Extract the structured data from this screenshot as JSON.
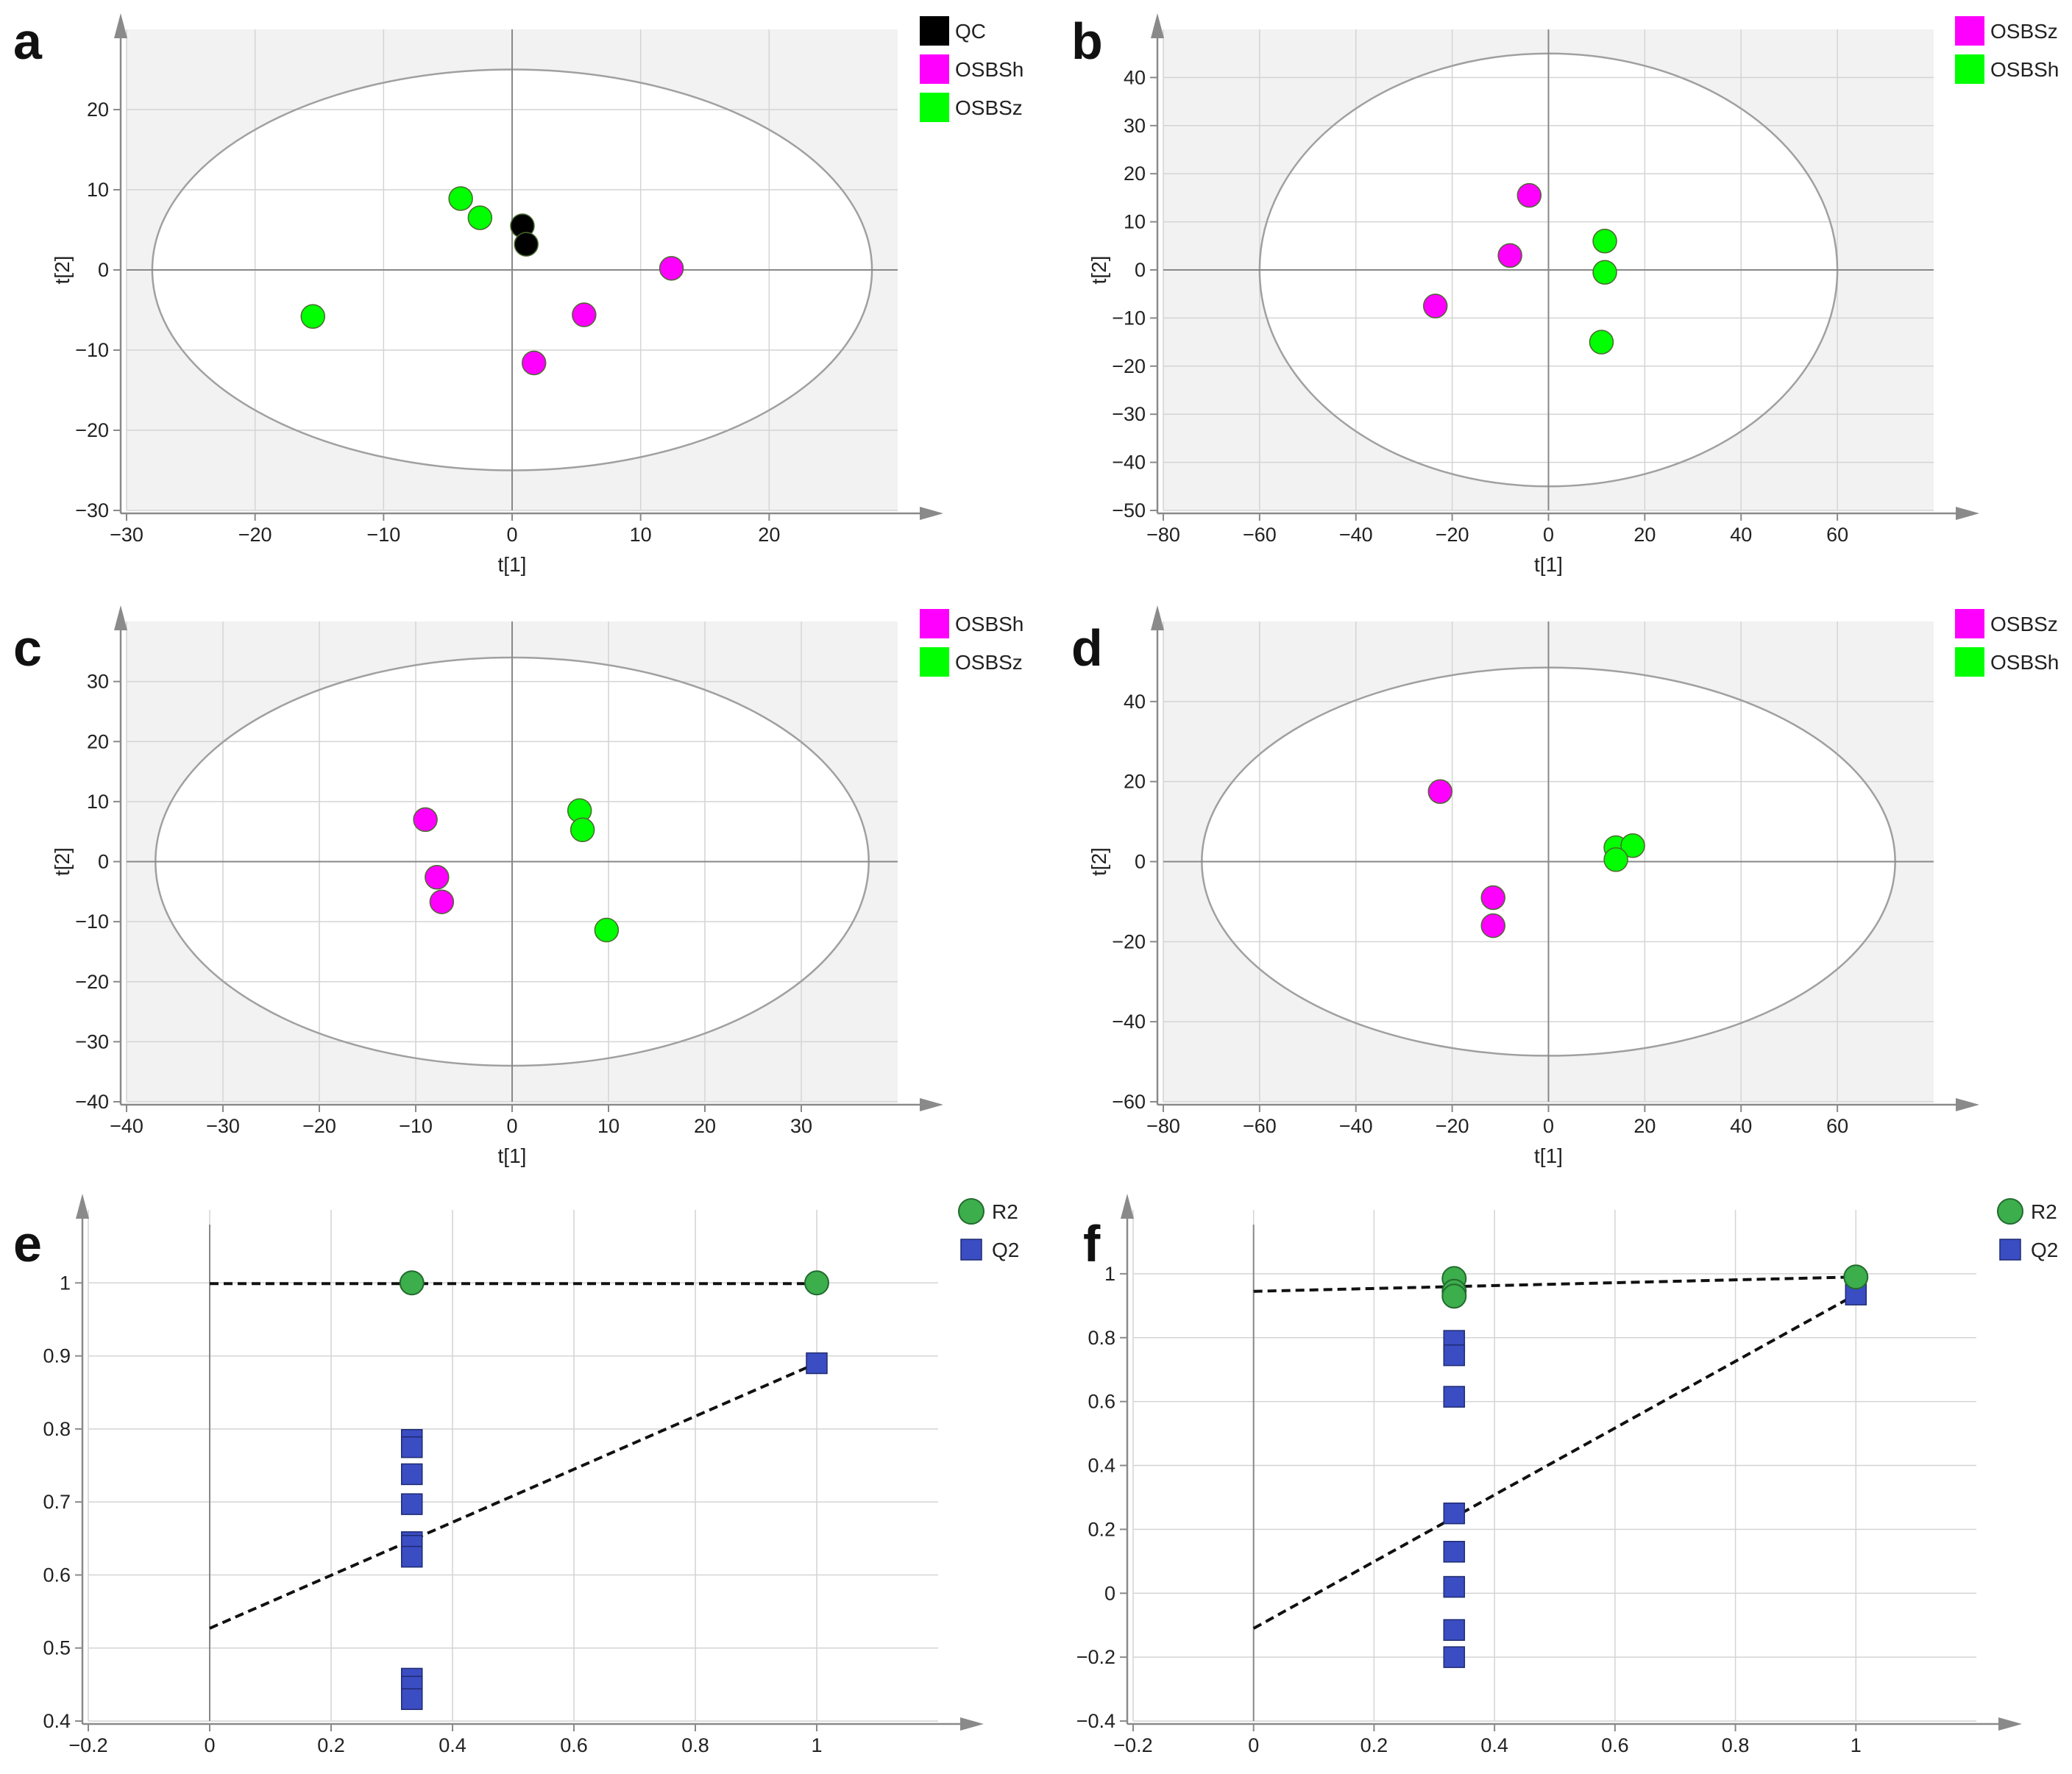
{
  "panels": [
    {
      "label": "a",
      "kind": "score",
      "xlabel": "t[1]",
      "ylabel": "t[2]",
      "xlim": [
        -30,
        30
      ],
      "ylim": [
        -30,
        30
      ],
      "xticks": [
        -30,
        -20,
        -10,
        0,
        10,
        20
      ],
      "yticks": [
        -30,
        -20,
        -10,
        0,
        10,
        20
      ],
      "ellipse": {
        "rx": 28,
        "ry": 25
      },
      "legend": [
        {
          "name": "QC",
          "color": "#000000"
        },
        {
          "name": "OSBSh",
          "color": "#ff00ff"
        },
        {
          "name": "OSBSz",
          "color": "#00ff00"
        }
      ],
      "series": [
        {
          "name": "QC",
          "color": "#000000",
          "points": [
            [
              0.8,
              5.5
            ],
            [
              1.1,
              3.2
            ]
          ]
        },
        {
          "name": "OSBSh",
          "color": "#ff00ff",
          "points": [
            [
              12.4,
              0.2
            ],
            [
              5.6,
              -5.6
            ],
            [
              1.7,
              -11.6
            ]
          ]
        },
        {
          "name": "OSBSz",
          "color": "#00ff00",
          "points": [
            [
              -4.0,
              8.9
            ],
            [
              -2.5,
              6.5
            ],
            [
              -15.5,
              -5.8
            ]
          ]
        }
      ]
    },
    {
      "label": "b",
      "kind": "score",
      "xlabel": "t[1]",
      "ylabel": "t[2]",
      "xlim": [
        -80,
        80
      ],
      "ylim": [
        -50,
        50
      ],
      "xticks": [
        -80,
        -60,
        -40,
        -20,
        0,
        20,
        40,
        60
      ],
      "yticks": [
        -50,
        -40,
        -30,
        -20,
        -10,
        0,
        10,
        20,
        30,
        40
      ],
      "ellipse": {
        "rx": 60,
        "ry": 45
      },
      "legend": [
        {
          "name": "OSBSz",
          "color": "#ff00ff"
        },
        {
          "name": "OSBSh",
          "color": "#00ff00"
        }
      ],
      "series": [
        {
          "name": "OSBSz",
          "color": "#ff00ff",
          "points": [
            [
              -4,
              15.5
            ],
            [
              -8,
              3
            ],
            [
              -23.5,
              -7.5
            ]
          ]
        },
        {
          "name": "OSBSh",
          "color": "#00ff00",
          "points": [
            [
              11.7,
              6
            ],
            [
              11.7,
              -0.5
            ],
            [
              11,
              -15
            ]
          ]
        }
      ]
    },
    {
      "label": "c",
      "kind": "score",
      "xlabel": "t[1]",
      "ylabel": "t[2]",
      "xlim": [
        -40,
        40
      ],
      "ylim": [
        -40,
        40
      ],
      "xticks": [
        -40,
        -30,
        -20,
        -10,
        0,
        10,
        20,
        30
      ],
      "yticks": [
        -40,
        -30,
        -20,
        -10,
        0,
        10,
        20,
        30
      ],
      "ellipse": {
        "rx": 37,
        "ry": 34
      },
      "legend": [
        {
          "name": "OSBSh",
          "color": "#ff00ff"
        },
        {
          "name": "OSBSz",
          "color": "#00ff00"
        }
      ],
      "series": [
        {
          "name": "OSBSh",
          "color": "#ff00ff",
          "points": [
            [
              -9,
              7
            ],
            [
              -7.8,
              -2.6
            ],
            [
              -7.3,
              -6.7
            ]
          ]
        },
        {
          "name": "OSBSz",
          "color": "#00ff00",
          "points": [
            [
              7,
              8.5
            ],
            [
              7.3,
              5.3
            ],
            [
              9.8,
              -11.4
            ]
          ]
        }
      ]
    },
    {
      "label": "d",
      "kind": "score",
      "xlabel": "t[1]",
      "ylabel": "t[2]",
      "xlim": [
        -80,
        80
      ],
      "ylim": [
        -60,
        60
      ],
      "xticks": [
        -80,
        -60,
        -40,
        -20,
        0,
        20,
        40,
        60
      ],
      "yticks": [
        -60,
        -40,
        -20,
        0,
        20,
        40
      ],
      "ellipse": {
        "rx": 72,
        "ry": 48.5
      },
      "legend": [
        {
          "name": "OSBSz",
          "color": "#ff00ff"
        },
        {
          "name": "OSBSh",
          "color": "#00ff00"
        }
      ],
      "series": [
        {
          "name": "OSBSz",
          "color": "#ff00ff",
          "points": [
            [
              -22.5,
              17.5
            ],
            [
              -11.5,
              -9
            ],
            [
              -11.5,
              -16
            ]
          ]
        },
        {
          "name": "OSBSh",
          "color": "#00ff00",
          "points": [
            [
              14,
              3.5
            ],
            [
              17.5,
              4
            ],
            [
              14,
              0.5
            ]
          ]
        }
      ]
    },
    {
      "label": "e",
      "kind": "perm",
      "xlim": [
        -0.2,
        1.2
      ],
      "ylim": [
        0.4,
        1.1
      ],
      "xticks": [
        -0.2,
        0,
        0.2,
        0.4,
        0.6,
        0.8,
        1
      ],
      "yticks": [
        0.4,
        0.5,
        0.6,
        0.7,
        0.8,
        0.9,
        1
      ],
      "legend": [
        {
          "name": "R2",
          "color": "#3cae4c",
          "marker": "circle"
        },
        {
          "name": "Q2",
          "color": "#3b4dc3",
          "marker": "square"
        }
      ],
      "r2_points": [
        [
          0.333,
          1.0
        ],
        [
          1,
          1.0
        ]
      ],
      "q2_points": [
        [
          0.333,
          0.785
        ],
        [
          0.333,
          0.775
        ],
        [
          0.333,
          0.738
        ],
        [
          0.333,
          0.697
        ],
        [
          0.333,
          0.645
        ],
        [
          0.333,
          0.64
        ],
        [
          0.333,
          0.625
        ],
        [
          0.333,
          0.458
        ],
        [
          0.333,
          0.447
        ],
        [
          0.333,
          0.43
        ],
        [
          1,
          0.89
        ]
      ],
      "r2_line": [
        [
          0,
          0.999
        ],
        [
          1,
          0.999
        ]
      ],
      "q2_line": [
        [
          0,
          0.527
        ],
        [
          1,
          0.89
        ]
      ]
    },
    {
      "label": "f",
      "kind": "perm",
      "xlim": [
        -0.2,
        1.2
      ],
      "ylim": [
        -0.4,
        1.2
      ],
      "xticks": [
        -0.2,
        0,
        0.2,
        0.4,
        0.6,
        0.8,
        1
      ],
      "yticks": [
        -0.4,
        -0.2,
        0,
        0.2,
        0.4,
        0.6,
        0.8,
        1
      ],
      "legend": [
        {
          "name": "R2",
          "color": "#3cae4c",
          "marker": "circle"
        },
        {
          "name": "Q2",
          "color": "#3b4dc3",
          "marker": "square"
        }
      ],
      "r2_points": [
        [
          0.333,
          0.985
        ],
        [
          0.333,
          0.945
        ],
        [
          0.333,
          0.93
        ],
        [
          1,
          0.99
        ]
      ],
      "q2_points": [
        [
          0.333,
          0.79
        ],
        [
          0.333,
          0.745
        ],
        [
          0.333,
          0.615
        ],
        [
          0.333,
          0.25
        ],
        [
          0.333,
          0.13
        ],
        [
          0.333,
          0.02
        ],
        [
          0.333,
          -0.115
        ],
        [
          0.333,
          -0.2
        ],
        [
          1,
          0.935
        ]
      ],
      "r2_line": [
        [
          0,
          0.945
        ],
        [
          1,
          0.99
        ]
      ],
      "q2_line": [
        [
          0,
          -0.11
        ],
        [
          1,
          0.935
        ]
      ]
    }
  ]
}
